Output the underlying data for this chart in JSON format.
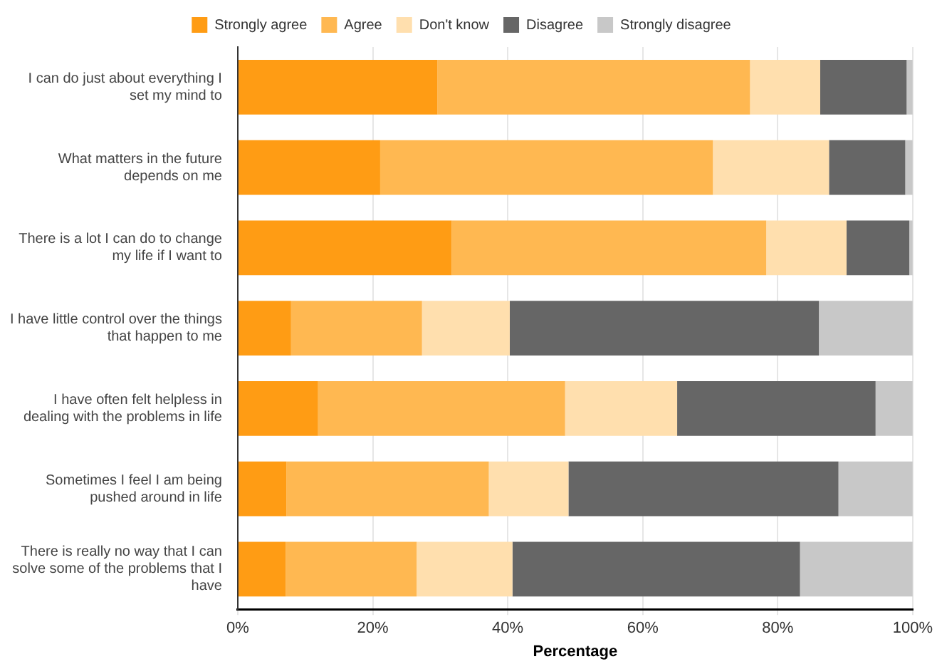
{
  "chart_data": {
    "type": "bar",
    "orientation": "horizontal",
    "stacked": true,
    "xlabel": "Percentage",
    "categories": [
      "I can do just about everything I set my mind to",
      "What matters in the future depends on me",
      "There is a lot I can do to change my life if I want to",
      "I have little control over the things that happen to me",
      "I have often felt helpless in dealing with the problems in life",
      "Sometimes I feel I am being pushed around in life",
      "There is really no way that I can solve some of the problems that I have"
    ],
    "series": [
      {
        "name": "Strongly agree",
        "color": "#ff9c14",
        "values": [
          29.6,
          21.1,
          31.7,
          7.9,
          11.9,
          7.2,
          7.1
        ]
      },
      {
        "name": "Agree",
        "color": "#ffb851",
        "values": [
          46.3,
          49.3,
          46.6,
          19.4,
          36.6,
          30.0,
          19.4
        ]
      },
      {
        "name": "Don't know",
        "color": "#ffdfae",
        "values": [
          10.4,
          17.2,
          11.9,
          13.0,
          16.6,
          11.8,
          14.2
        ]
      },
      {
        "name": "Disagree",
        "color": "#666666",
        "values": [
          12.8,
          11.3,
          9.3,
          45.8,
          29.4,
          40.0,
          42.6
        ]
      },
      {
        "name": "Strongly disagree",
        "color": "#c8c8c8",
        "values": [
          0.9,
          1.1,
          0.5,
          13.9,
          5.5,
          11.0,
          16.7
        ]
      }
    ],
    "xlim": [
      0,
      100
    ],
    "xticks": [
      {
        "value": 0,
        "label": "0%"
      },
      {
        "value": 20,
        "label": "20%"
      },
      {
        "value": 40,
        "label": "40%"
      },
      {
        "value": 60,
        "label": "60%"
      },
      {
        "value": 80,
        "label": "80%"
      },
      {
        "value": 100,
        "label": "100%"
      }
    ],
    "grid": "x",
    "legend": "top"
  }
}
